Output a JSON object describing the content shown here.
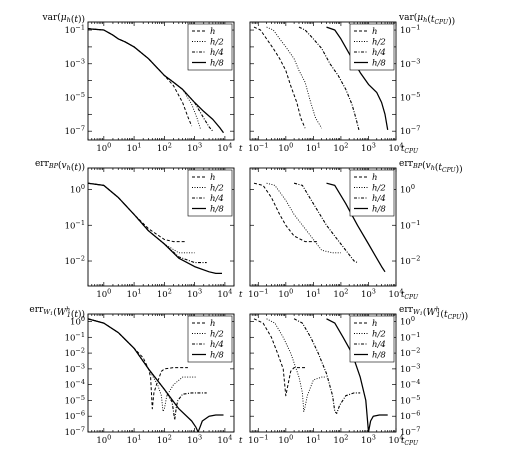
{
  "chart_data": [
    {
      "type": "line",
      "id": "a",
      "grid": [
        0,
        0
      ],
      "ylabel": "var(μh(t))",
      "ylabel_side": "left",
      "x_suffix": "t",
      "xscale": "log",
      "yscale": "log",
      "xlim": [
        0.3,
        20000
      ],
      "ylim": [
        3e-08,
        0.3
      ],
      "xticks": [
        "10^0",
        "10^1",
        "10^2",
        "10^3",
        "10^4"
      ],
      "yticks": [
        "10^-1",
        "10^-3",
        "10^-5",
        "10^-7"
      ],
      "legend": "top-right",
      "series": [
        {
          "name": "h",
          "style": "dashed",
          "x": [
            0.3,
            1,
            2,
            3,
            5,
            10,
            30,
            100,
            200,
            400,
            600,
            800
          ],
          "y": [
            0.12,
            0.1,
            0.05,
            0.03,
            0.02,
            0.01,
            0.002,
            0.0002,
            5e-05,
            5e-06,
            7e-07,
            2e-07
          ]
        },
        {
          "name": "h/2",
          "style": "dotted",
          "x": [
            0.3,
            1,
            2,
            3,
            5,
            10,
            30,
            100,
            200,
            400,
            800,
            1200,
            1600
          ],
          "y": [
            0.12,
            0.1,
            0.05,
            0.03,
            0.02,
            0.01,
            0.002,
            0.0002,
            8e-05,
            3e-05,
            4e-06,
            6e-07,
            1.2e-07
          ]
        },
        {
          "name": "h/4",
          "style": "dash-dot",
          "x": [
            0.3,
            1,
            2,
            3,
            5,
            10,
            30,
            100,
            200,
            400,
            1000,
            2000,
            3000,
            4000
          ],
          "y": [
            0.12,
            0.1,
            0.05,
            0.03,
            0.02,
            0.01,
            0.002,
            0.0002,
            8e-05,
            3e-05,
            5e-06,
            6e-07,
            1.8e-07,
            1e-07
          ]
        },
        {
          "name": "h/8",
          "style": "solid",
          "x": [
            0.3,
            1,
            2,
            3,
            5,
            10,
            30,
            100,
            200,
            400,
            1000,
            2000,
            4000,
            7000,
            9000
          ],
          "y": [
            0.12,
            0.1,
            0.05,
            0.03,
            0.02,
            0.01,
            0.002,
            0.0002,
            8e-05,
            3e-05,
            5e-06,
            1.5e-06,
            5e-07,
            1.5e-07,
            8e-08
          ]
        }
      ]
    },
    {
      "type": "line",
      "id": "b",
      "grid": [
        0,
        1
      ],
      "ylabel": "var(μh(tCPU))",
      "ylabel_side": "right",
      "x_suffix": "tCPU",
      "xscale": "log",
      "yscale": "log",
      "xlim": [
        0.05,
        10000
      ],
      "ylim": [
        3e-08,
        0.3
      ],
      "xticks": [
        "10^-1",
        "10^0",
        "10^1",
        "10^2",
        "10^3",
        "10^4"
      ],
      "yticks": [
        "10^-1",
        "10^-3",
        "10^-5",
        "10^-7"
      ],
      "legend": "top-right",
      "series": [
        {
          "name": "h",
          "style": "dashed",
          "x": [
            0.07,
            0.12,
            0.2,
            0.35,
            0.6,
            1,
            1.5,
            2.5,
            3.5,
            5
          ],
          "y": [
            0.15,
            0.1,
            0.03,
            0.008,
            0.002,
            0.0004,
            5e-05,
            5e-06,
            6e-07,
            1.5e-07
          ]
        },
        {
          "name": "h/2",
          "style": "dotted",
          "x": [
            0.2,
            0.35,
            0.6,
            1,
            2,
            3,
            5,
            8,
            12,
            20
          ],
          "y": [
            0.15,
            0.1,
            0.03,
            0.01,
            0.002,
            0.0004,
            8e-05,
            5e-06,
            6e-07,
            1.5e-07
          ]
        },
        {
          "name": "h/4",
          "style": "dash-dot",
          "x": [
            3,
            5,
            10,
            20,
            40,
            80,
            150,
            250,
            350,
            450
          ],
          "y": [
            0.15,
            0.1,
            0.03,
            0.008,
            0.001,
            0.0002,
            3e-05,
            4e-06,
            6e-07,
            1.2e-07
          ]
        },
        {
          "name": "h/8",
          "style": "solid",
          "x": [
            30,
            60,
            100,
            200,
            500,
            1000,
            2000,
            3000,
            4000,
            5000
          ],
          "y": [
            0.15,
            0.1,
            0.03,
            0.004,
            0.0003,
            6e-05,
            2e-05,
            5e-06,
            1e-06,
            1.2e-07
          ]
        }
      ]
    },
    {
      "type": "line",
      "id": "c",
      "grid": [
        1,
        0
      ],
      "ylabel": "errBP(vh(t))",
      "ylabel_side": "left",
      "x_suffix": "t",
      "xscale": "log",
      "yscale": "log",
      "xlim": [
        0.3,
        20000
      ],
      "ylim": [
        0.002,
        4
      ],
      "xticks": [
        "10^0",
        "10^1",
        "10^2",
        "10^3",
        "10^4"
      ],
      "yticks": [
        "10^0",
        "10^-1",
        "10^-2"
      ],
      "legend": "top-right",
      "series": [
        {
          "name": "h",
          "style": "dashed",
          "x": [
            0.3,
            1,
            3,
            10,
            30,
            100,
            200,
            300,
            500
          ],
          "y": [
            1.5,
            1.3,
            0.6,
            0.2,
            0.08,
            0.04,
            0.035,
            0.035,
            0.035
          ]
        },
        {
          "name": "h/2",
          "style": "dotted",
          "x": [
            0.3,
            1,
            3,
            10,
            30,
            100,
            300,
            600,
            1000
          ],
          "y": [
            1.5,
            1.3,
            0.6,
            0.2,
            0.07,
            0.03,
            0.017,
            0.017,
            0.017
          ]
        },
        {
          "name": "h/4",
          "style": "dash-dot",
          "x": [
            0.3,
            1,
            3,
            10,
            30,
            100,
            300,
            1000,
            1500,
            2500
          ],
          "y": [
            1.5,
            1.3,
            0.6,
            0.2,
            0.07,
            0.03,
            0.013,
            0.009,
            0.009,
            0.009
          ]
        },
        {
          "name": "h/8",
          "style": "solid",
          "x": [
            0.3,
            1,
            3,
            10,
            30,
            100,
            300,
            1000,
            3000,
            5000,
            8000
          ],
          "y": [
            1.5,
            1.3,
            0.6,
            0.2,
            0.07,
            0.03,
            0.012,
            0.007,
            0.005,
            0.0045,
            0.0045
          ]
        }
      ]
    },
    {
      "type": "line",
      "id": "d",
      "grid": [
        1,
        1
      ],
      "ylabel": "errBP(vh(tCPU))",
      "ylabel_side": "right",
      "x_suffix": "tCPU",
      "xscale": "log",
      "yscale": "log",
      "xlim": [
        0.05,
        10000
      ],
      "ylim": [
        0.002,
        4
      ],
      "xticks": [
        "10^-1",
        "10^0",
        "10^1",
        "10^2",
        "10^3",
        "10^4"
      ],
      "yticks": [
        "10^0",
        "10^-1",
        "10^-2"
      ],
      "legend": "top-right",
      "series": [
        {
          "name": "h",
          "style": "dashed",
          "x": [
            0.07,
            0.15,
            0.3,
            0.6,
            1,
            2,
            5,
            10,
            15
          ],
          "y": [
            1.5,
            1.3,
            0.6,
            0.2,
            0.1,
            0.05,
            0.035,
            0.035,
            0.035
          ]
        },
        {
          "name": "h/2",
          "style": "dotted",
          "x": [
            0.2,
            0.4,
            1,
            2,
            5,
            10,
            20,
            50,
            100
          ],
          "y": [
            1.5,
            1.3,
            0.5,
            0.2,
            0.08,
            0.04,
            0.02,
            0.017,
            0.017
          ]
        },
        {
          "name": "h/4",
          "style": "dash-dot",
          "x": [
            2,
            4,
            10,
            30,
            100,
            200,
            300,
            400
          ],
          "y": [
            1.5,
            1.3,
            0.4,
            0.1,
            0.03,
            0.015,
            0.01,
            0.009
          ]
        },
        {
          "name": "h/8",
          "style": "solid",
          "x": [
            30,
            60,
            150,
            400,
            1000,
            2000,
            3000,
            4000
          ],
          "y": [
            1.5,
            1.3,
            0.4,
            0.1,
            0.03,
            0.012,
            0.007,
            0.005
          ]
        }
      ]
    },
    {
      "type": "line",
      "id": "e",
      "grid": [
        2,
        0
      ],
      "ylabel": "errW1(W1h(t))",
      "ylabel_side": "left",
      "x_suffix": "t",
      "xscale": "log",
      "yscale": "log",
      "xlim": [
        0.3,
        20000
      ],
      "ylim": [
        1e-07,
        3
      ],
      "xticks": [
        "10^0",
        "10^1",
        "10^2",
        "10^3",
        "10^4"
      ],
      "yticks": [
        "10^0",
        "10^-1",
        "10^-2",
        "10^-3",
        "10^-4",
        "10^-5",
        "10^-6",
        "10^-7"
      ],
      "legend": "top-right",
      "series": [
        {
          "name": "h",
          "style": "dashed",
          "x": [
            0.3,
            1,
            3,
            10,
            20,
            30,
            35,
            40,
            45,
            55,
            80,
            100,
            200,
            400,
            600
          ],
          "y": [
            1.5,
            0.8,
            0.2,
            0.02,
            0.005,
            0.001,
            0.0003,
            3e-06,
            3e-05,
            0.0001,
            0.0007,
            0.001,
            0.0012,
            0.0012,
            0.0012
          ]
        },
        {
          "name": "h/2",
          "style": "dotted",
          "x": [
            0.3,
            1,
            3,
            10,
            30,
            60,
            80,
            90,
            100,
            120,
            200,
            400,
            800,
            1200
          ],
          "y": [
            1.5,
            0.8,
            0.2,
            0.02,
            0.001,
            0.0001,
            2e-05,
            2e-06,
            3e-06,
            2e-05,
            0.0001,
            0.0003,
            0.0003,
            0.0003
          ]
        },
        {
          "name": "h/4",
          "style": "dash-dot",
          "x": [
            0.3,
            1,
            3,
            10,
            30,
            100,
            180,
            220,
            250,
            280,
            400,
            800,
            1500,
            2500
          ],
          "y": [
            1.5,
            0.8,
            0.2,
            0.02,
            0.001,
            5e-05,
            8e-06,
            6e-07,
            4e-06,
            1e-05,
            2.5e-05,
            3e-05,
            3e-05,
            3e-05
          ]
        },
        {
          "name": "h/8",
          "style": "solid",
          "x": [
            0.3,
            1,
            3,
            10,
            30,
            100,
            300,
            800,
            1100,
            1300,
            1500,
            1800,
            3000,
            5000,
            9000
          ],
          "y": [
            1.5,
            0.8,
            0.2,
            0.02,
            0.001,
            5e-05,
            3e-06,
            5e-07,
            2e-07,
            1e-07,
            2e-07,
            5e-07,
            1e-06,
            1.2e-06,
            1.2e-06
          ]
        }
      ]
    },
    {
      "type": "line",
      "id": "f",
      "grid": [
        2,
        1
      ],
      "ylabel": "errW1(W1h(tCPU))",
      "ylabel_side": "right",
      "x_suffix": "tCPU",
      "xscale": "log",
      "yscale": "log",
      "xlim": [
        0.05,
        10000
      ],
      "ylim": [
        1e-07,
        3
      ],
      "xticks": [
        "10^-1",
        "10^0",
        "10^1",
        "10^2",
        "10^3",
        "10^4"
      ],
      "yticks": [
        "10^0",
        "10^-1",
        "10^-2",
        "10^-3",
        "10^-4",
        "10^-5",
        "10^-6",
        "10^-7"
      ],
      "legend": "top-right",
      "series": [
        {
          "name": "h",
          "style": "dashed",
          "x": [
            0.07,
            0.15,
            0.3,
            0.5,
            0.8,
            1,
            1.2,
            1.5,
            2,
            3,
            5
          ],
          "y": [
            1.5,
            0.8,
            0.1,
            0.01,
            0.001,
            2e-05,
            0.0001,
            0.0007,
            0.0012,
            0.0012,
            0.0012
          ]
        },
        {
          "name": "h/2",
          "style": "dotted",
          "x": [
            0.2,
            0.4,
            0.8,
            1.5,
            3,
            4,
            4.5,
            5,
            6,
            10,
            20,
            30
          ],
          "y": [
            1.5,
            0.8,
            0.1,
            0.01,
            0.0003,
            3e-05,
            2e-06,
            4e-06,
            2e-05,
            0.0002,
            0.0003,
            0.0003
          ]
        },
        {
          "name": "h/4",
          "style": "dash-dot",
          "x": [
            2,
            4,
            8,
            15,
            30,
            50,
            60,
            70,
            90,
            150,
            300,
            500
          ],
          "y": [
            1.5,
            0.8,
            0.1,
            0.01,
            0.0005,
            2e-05,
            2e-06,
            1.5e-06,
            5e-06,
            2e-05,
            3e-05,
            3e-05
          ]
        },
        {
          "name": "h/8",
          "style": "solid",
          "x": [
            30,
            60,
            120,
            250,
            500,
            800,
            1000,
            1200,
            1500,
            2500,
            4000,
            5000
          ],
          "y": [
            1.5,
            0.8,
            0.1,
            0.01,
            0.0003,
            1e-05,
            1e-07,
            5e-07,
            1e-06,
            1.2e-06,
            1.2e-06,
            1.2e-06
          ]
        }
      ]
    }
  ]
}
